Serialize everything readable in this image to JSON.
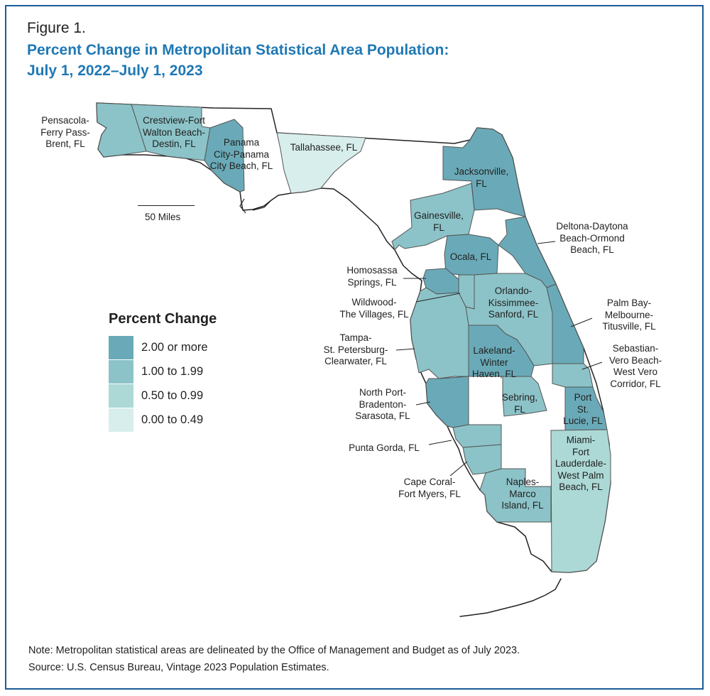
{
  "figure_label": "Figure 1.",
  "title": {
    "line1": "Percent Change in Metropolitan Statistical Area Population:",
    "line2": "July 1, 2022–July 1, 2023"
  },
  "legend": {
    "title": "Percent Change",
    "items": [
      {
        "label": "2.00 or more",
        "color": "#6aaab8"
      },
      {
        "label": "1.00 to 1.99",
        "color": "#8cc3c8"
      },
      {
        "label": "0.50 to 0.99",
        "color": "#acd9d6"
      },
      {
        "label": "0.00 to 0.49",
        "color": "#d7eeec"
      }
    ]
  },
  "scale_bar": {
    "label": "50 Miles"
  },
  "map_colors": {
    "outside": "#ffffff",
    "border": "#222222",
    "metro_border": "#555555"
  },
  "labels": {
    "pensacola": "Pensacola-\nFerry Pass-\nBrent, FL",
    "crestview": "Crestview-Fort\nWalton Beach-\nDestin, FL",
    "panama_city": "Panama\nCity-Panama\nCity Beach, FL",
    "tallahassee": "Tallahassee, FL",
    "jacksonville": "Jacksonville,\nFL",
    "gainesville": "Gainesville,\nFL",
    "deltona": "Deltona-Daytona\nBeach-Ormond\nBeach, FL",
    "ocala": "Ocala, FL",
    "homosassa": "Homosassa\nSprings, FL",
    "wildwood": "Wildwood-\nThe Villages, FL",
    "orlando": "Orlando-\nKissimmee-\nSanford, FL",
    "palm_bay": "Palm Bay-\nMelbourne-\nTitusville, FL",
    "tampa": "Tampa-\nSt. Petersburg-\nClearwater, FL",
    "lakeland": "Lakeland-\nWinter\nHaven, FL",
    "sebastian": "Sebastian-\nVero Beach-\nWest Vero\nCorridor, FL",
    "north_port": "North Port-\nBradenton-\nSarasota, FL",
    "sebring": "Sebring,\nFL",
    "port_st_lucie": "Port\nSt.\nLucie, FL",
    "punta_gorda": "Punta Gorda, FL",
    "miami": "Miami-\nFort\nLauderdale-\nWest Palm\nBeach, FL",
    "cape_coral": "Cape Coral-\nFort Myers, FL",
    "naples": "Naples-\nMarco\nIsland, FL"
  },
  "note": "Note: Metropolitan statistical areas are delineated by the Office of Management and Budget as of July 2023.",
  "source": "Source: U.S. Census Bureau, Vintage 2023 Population Estimates."
}
